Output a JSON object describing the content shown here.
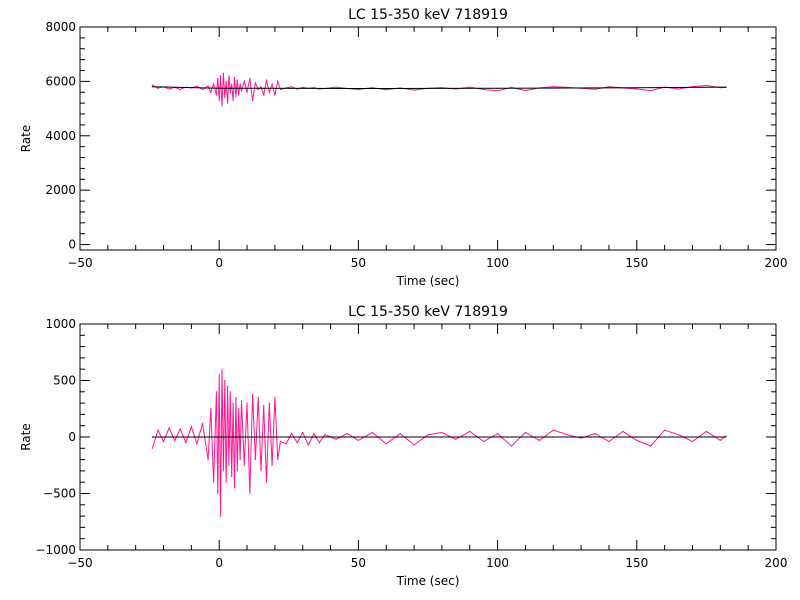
{
  "chart_data": [
    {
      "type": "line",
      "title": "LC 15-350 keV  718919",
      "xlabel": "Time (sec)",
      "ylabel": "Rate",
      "xlim": [
        -50,
        200
      ],
      "ylim": [
        -200,
        8000
      ],
      "xticks": [
        -50,
        0,
        50,
        100,
        150,
        200
      ],
      "xtick_labels": [
        "−50",
        "0",
        "50",
        "100",
        "150",
        "200"
      ],
      "yticks": [
        0,
        2000,
        4000,
        6000,
        8000
      ],
      "ytick_labels": [
        "0",
        "2000",
        "4000",
        "6000",
        "8000"
      ],
      "grid": false,
      "colors": {
        "data": "#ff1493",
        "model": "#000000"
      },
      "series": [
        {
          "role": "data",
          "color": "#ff1493",
          "x": [
            -24,
            -22,
            -20,
            -18,
            -16,
            -14,
            -12,
            -10,
            -8,
            -6,
            -4,
            -3,
            -2,
            -1,
            -0.5,
            0,
            0.5,
            1,
            1.5,
            2,
            2.5,
            3,
            3.5,
            4,
            4.5,
            5,
            5.5,
            6,
            6.5,
            7,
            7.5,
            8,
            9,
            10,
            11,
            12,
            13,
            14,
            15,
            16,
            17,
            18,
            19,
            20,
            21,
            22,
            24,
            26,
            28,
            30,
            32,
            34,
            36,
            38,
            42,
            46,
            50,
            55,
            60,
            65,
            70,
            75,
            80,
            85,
            90,
            95,
            100,
            105,
            110,
            115,
            120,
            125,
            130,
            135,
            140,
            145,
            150,
            155,
            160,
            165,
            170,
            175,
            180,
            182
          ],
          "y": [
            5860,
            5750,
            5800,
            5720,
            5780,
            5700,
            5790,
            5760,
            5820,
            5700,
            5830,
            5600,
            5900,
            5500,
            6100,
            5300,
            6200,
            5100,
            6300,
            5400,
            6000,
            5200,
            6200,
            5600,
            5900,
            5300,
            6150,
            5450,
            6050,
            5500,
            5900,
            5650,
            6000,
            5600,
            6100,
            5300,
            5950,
            5700,
            5800,
            5500,
            6050,
            5600,
            5900,
            5500,
            6000,
            5700,
            5760,
            5800,
            5720,
            5780,
            5750,
            5770,
            5720,
            5740,
            5790,
            5740,
            5700,
            5770,
            5690,
            5760,
            5680,
            5750,
            5770,
            5720,
            5790,
            5700,
            5650,
            5780,
            5660,
            5760,
            5800,
            5780,
            5750,
            5710,
            5800,
            5760,
            5720,
            5660,
            5790,
            5720,
            5810,
            5850,
            5770,
            5780
          ]
        },
        {
          "role": "model",
          "color": "#000000",
          "x": [
            -24,
            0,
            50,
            100,
            150,
            182
          ],
          "y": [
            5800,
            5750,
            5740,
            5745,
            5765,
            5790
          ]
        }
      ]
    },
    {
      "type": "line",
      "title": "LC 15-350 keV  718919",
      "xlabel": "Time (sec)",
      "ylabel": "Rate",
      "xlim": [
        -50,
        200
      ],
      "ylim": [
        -1000,
        1000
      ],
      "xticks": [
        -50,
        0,
        50,
        100,
        150,
        200
      ],
      "xtick_labels": [
        "−50",
        "0",
        "50",
        "100",
        "150",
        "200"
      ],
      "yticks": [
        -1000,
        -500,
        0,
        500,
        1000
      ],
      "ytick_labels": [
        "−1000",
        "−500",
        "0",
        "500",
        "1000"
      ],
      "grid": false,
      "colors": {
        "data": "#ff1493",
        "model": "#000000"
      },
      "series": [
        {
          "role": "data",
          "color": "#ff1493",
          "x": [
            -24,
            -22,
            -20,
            -18,
            -16,
            -14,
            -12,
            -10,
            -8,
            -6,
            -4,
            -3,
            -2,
            -1,
            -0.5,
            0,
            0.5,
            1,
            1.5,
            2,
            2.5,
            3,
            3.5,
            4,
            4.5,
            5,
            5.5,
            6,
            6.5,
            7,
            7.5,
            8,
            9,
            10,
            11,
            12,
            13,
            14,
            15,
            16,
            17,
            18,
            19,
            20,
            21,
            22,
            24,
            26,
            28,
            30,
            32,
            34,
            36,
            38,
            42,
            46,
            50,
            55,
            60,
            65,
            70,
            75,
            80,
            85,
            90,
            95,
            100,
            105,
            110,
            115,
            120,
            125,
            130,
            135,
            140,
            145,
            150,
            155,
            160,
            165,
            170,
            175,
            180,
            182
          ],
          "y": [
            -100,
            60,
            -40,
            80,
            -30,
            70,
            -50,
            90,
            -60,
            120,
            -200,
            250,
            -400,
            400,
            -500,
            550,
            -700,
            600,
            -300,
            500,
            -400,
            450,
            -250,
            400,
            -350,
            300,
            -450,
            350,
            -300,
            250,
            -200,
            320,
            -250,
            300,
            -500,
            380,
            -200,
            350,
            -300,
            280,
            -400,
            300,
            -250,
            350,
            -200,
            -40,
            -60,
            30,
            -50,
            40,
            -70,
            30,
            -50,
            20,
            -20,
            30,
            -30,
            40,
            -60,
            30,
            -70,
            20,
            40,
            -20,
            50,
            -40,
            30,
            -80,
            40,
            -30,
            60,
            20,
            -10,
            30,
            -40,
            50,
            -30,
            -80,
            60,
            20,
            -40,
            50,
            -30,
            10
          ]
        },
        {
          "role": "model",
          "color": "#000000",
          "x": [
            -24,
            182
          ],
          "y": [
            0,
            0
          ]
        }
      ]
    }
  ]
}
